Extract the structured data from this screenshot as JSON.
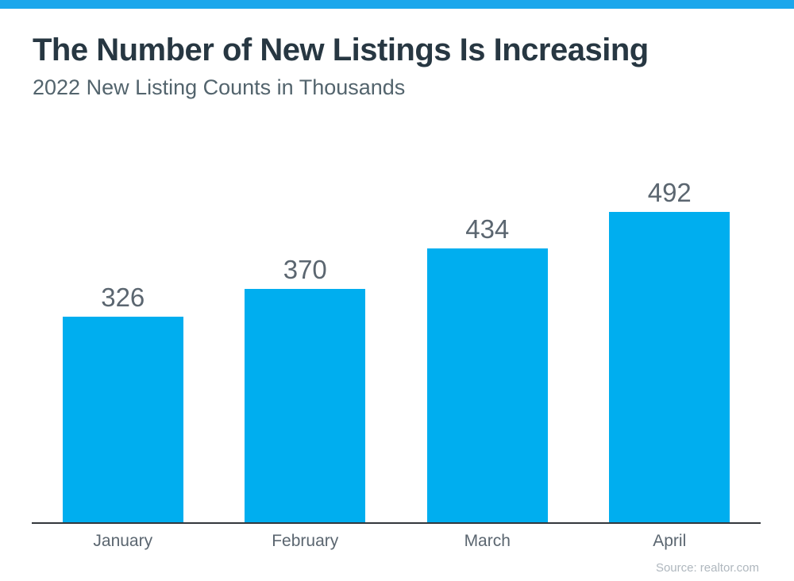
{
  "page": {
    "background": "#ffffff",
    "top_stripe_color": "#1ba7ec"
  },
  "header": {
    "title": "The Number of New Listings Is Increasing",
    "subtitle": "2022 New Listing Counts in Thousands",
    "title_color": "#273742",
    "subtitle_color": "#53646d"
  },
  "chart_data": {
    "type": "bar",
    "title": "The Number of New Listings Is Increasing",
    "subtitle": "2022 New Listing Counts in Thousands",
    "categories": [
      "January",
      "February",
      "March",
      "April"
    ],
    "values": [
      326,
      370,
      434,
      492
    ],
    "xlabel": "",
    "ylabel": "",
    "ylim": [
      0,
      620
    ],
    "grid": false,
    "legend": "none",
    "data_labels_position": "above-bars",
    "bar_color": "#00aeef",
    "value_label_color": "#5b6670",
    "category_label_color": "#5b6670",
    "axis_line_color": "#33383c"
  },
  "footer": {
    "source": "Source: realtor.com",
    "source_color": "#afb7be"
  }
}
